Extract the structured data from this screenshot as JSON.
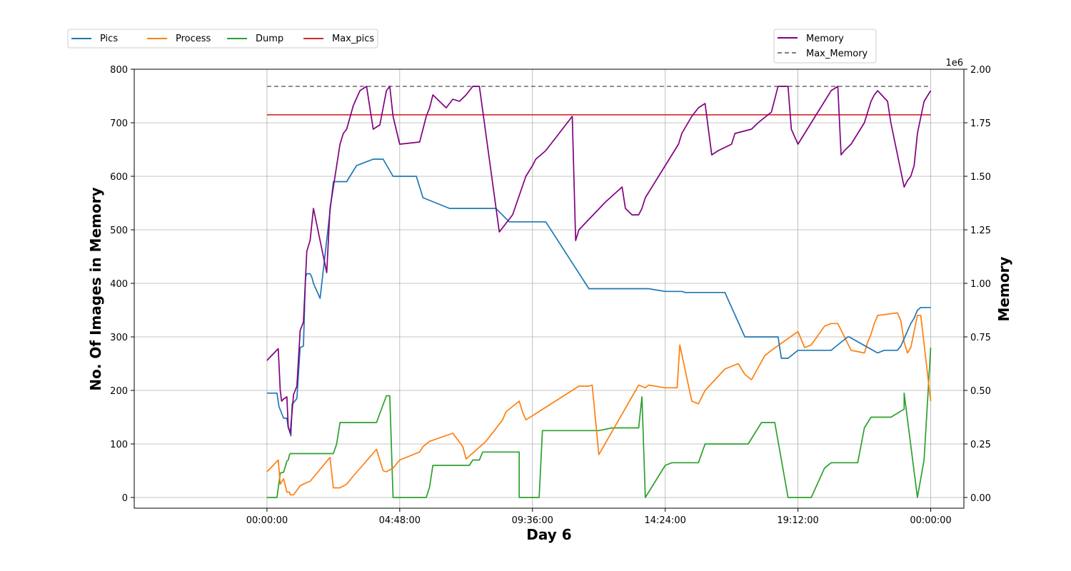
{
  "chart_data": {
    "type": "line",
    "title": "",
    "xlabel": "Day 6",
    "ylabel": "No. Of Images in Memory",
    "y2label": "Memory",
    "y2_offset_label": "1e6",
    "grid": true,
    "xlim": [
      -0.2,
      1.05
    ],
    "ylim": [
      -20,
      800
    ],
    "y2lim": [
      -0.05,
      2.0
    ],
    "x_ticks": [
      0,
      0.2,
      0.4,
      0.6,
      0.8,
      1.0
    ],
    "x_tick_labels": [
      "00:00:00",
      "04:48:00",
      "09:36:00",
      "14:24:00",
      "19:12:00",
      "00:00:00"
    ],
    "y_ticks": [
      0,
      100,
      200,
      300,
      400,
      500,
      600,
      700,
      800
    ],
    "y_tick_labels": [
      "0",
      "100",
      "200",
      "300",
      "400",
      "500",
      "600",
      "700",
      "800"
    ],
    "y2_ticks": [
      0,
      0.25,
      0.5,
      0.75,
      1.0,
      1.25,
      1.5,
      1.75,
      2.0
    ],
    "y2_tick_labels": [
      "0.00",
      "0.25",
      "0.50",
      "0.75",
      "1.00",
      "1.25",
      "1.50",
      "1.75",
      "2.00"
    ],
    "legend_left": {
      "placement": "top-left, above plot",
      "entries": [
        "Pics",
        "Process",
        "Dump",
        "Max_pics"
      ]
    },
    "legend_right": {
      "placement": "top-right, above plot",
      "entries": [
        "Memory",
        "Max_Memory"
      ]
    },
    "series": [
      {
        "name": "Pics",
        "axis": "left",
        "color": "#1f77b4",
        "style": "solid",
        "x": [
          0,
          0.015,
          0.018,
          0.025,
          0.03,
          0.032,
          0.034,
          0.036,
          0.038,
          0.04,
          0.045,
          0.05,
          0.055,
          0.058,
          0.06,
          0.065,
          0.068,
          0.07,
          0.08,
          0.1,
          0.12,
          0.135,
          0.16,
          0.175,
          0.19,
          0.2,
          0.215,
          0.22,
          0.225,
          0.235,
          0.275,
          0.285,
          0.295,
          0.32,
          0.345,
          0.365,
          0.39,
          0.415,
          0.42,
          0.485,
          0.5,
          0.511,
          0.515,
          0.555,
          0.575,
          0.6,
          0.61,
          0.625,
          0.63,
          0.65,
          0.66,
          0.69,
          0.72,
          0.725,
          0.76,
          0.77,
          0.775,
          0.785,
          0.8,
          0.83,
          0.84,
          0.85,
          0.855,
          0.875,
          0.877,
          0.92,
          0.93,
          0.95,
          0.955,
          0.97,
          0.975,
          0.98,
          0.985,
          0.99,
          0.995,
          1.0
        ],
        "y": [
          195,
          195,
          170,
          148,
          148,
          130,
          125,
          115,
          175,
          177,
          185,
          280,
          283,
          410,
          418,
          418,
          410,
          400,
          372,
          590,
          590,
          620,
          632,
          632,
          600,
          600,
          600,
          600,
          600,
          560,
          540,
          540,
          540,
          540,
          540,
          515,
          515,
          515,
          515,
          390,
          390,
          390,
          390,
          390,
          390,
          385,
          385,
          385,
          383,
          383,
          383,
          383,
          300,
          300,
          300,
          300,
          260,
          260,
          275,
          275,
          275,
          275,
          280,
          300,
          300,
          270,
          275,
          275,
          283,
          325,
          335,
          350,
          355,
          355,
          355,
          355
        ]
      },
      {
        "name": "Process",
        "axis": "left",
        "color": "#ff7f0e",
        "style": "solid",
        "x": [
          0,
          0.017,
          0.02,
          0.025,
          0.03,
          0.034,
          0.035,
          0.04,
          0.046,
          0.05,
          0.055,
          0.06,
          0.065,
          0.095,
          0.1,
          0.11,
          0.12,
          0.13,
          0.165,
          0.175,
          0.18,
          0.18,
          0.19,
          0.2,
          0.23,
          0.235,
          0.245,
          0.28,
          0.295,
          0.3,
          0.33,
          0.355,
          0.36,
          0.38,
          0.385,
          0.39,
          0.47,
          0.48,
          0.485,
          0.49,
          0.5,
          0.56,
          0.57,
          0.575,
          0.6,
          0.618,
          0.622,
          0.64,
          0.65,
          0.66,
          0.69,
          0.71,
          0.72,
          0.73,
          0.75,
          0.76,
          0.8,
          0.81,
          0.82,
          0.84,
          0.85,
          0.86,
          0.88,
          0.9,
          0.905,
          0.91,
          0.915,
          0.92,
          0.95,
          0.955,
          0.96,
          0.965,
          0.97,
          0.98,
          0.985,
          1.0
        ],
        "y": [
          48,
          70,
          25,
          35,
          10,
          10,
          5,
          5,
          15,
          22,
          25,
          28,
          30,
          75,
          18,
          18,
          25,
          40,
          90,
          50,
          48,
          48,
          55,
          70,
          85,
          95,
          105,
          120,
          95,
          72,
          105,
          145,
          160,
          180,
          160,
          145,
          208,
          208,
          208,
          210,
          80,
          210,
          205,
          210,
          205,
          205,
          285,
          180,
          175,
          200,
          240,
          250,
          230,
          220,
          265,
          275,
          310,
          280,
          285,
          320,
          325,
          325,
          275,
          270,
          290,
          305,
          325,
          340,
          345,
          330,
          290,
          270,
          280,
          340,
          340,
          180
        ]
      },
      {
        "name": "Dump",
        "axis": "left",
        "color": "#2ca02c",
        "style": "solid",
        "x": [
          0,
          0.015,
          0.02,
          0.022,
          0.025,
          0.03,
          0.032,
          0.034,
          0.035,
          0.1,
          0.105,
          0.11,
          0.11,
          0.165,
          0.18,
          0.185,
          0.19,
          0.19,
          0.23,
          0.235,
          0.24,
          0.245,
          0.25,
          0.305,
          0.31,
          0.32,
          0.325,
          0.345,
          0.35,
          0.38,
          0.38,
          0.385,
          0.39,
          0.41,
          0.415,
          0.49,
          0.495,
          0.5,
          0.52,
          0.525,
          0.55,
          0.56,
          0.565,
          0.57,
          0.59,
          0.6,
          0.61,
          0.62,
          0.65,
          0.66,
          0.7,
          0.71,
          0.725,
          0.745,
          0.76,
          0.765,
          0.785,
          0.8,
          0.81,
          0.82,
          0.84,
          0.85,
          0.86,
          0.87,
          0.875,
          0.88,
          0.89,
          0.9,
          0.91,
          0.92,
          0.94,
          0.96,
          0.96,
          0.98,
          0.99,
          1.0
        ],
        "y": [
          0,
          0,
          45,
          47,
          47,
          68,
          70,
          80,
          82,
          82,
          100,
          140,
          140,
          140,
          190,
          190,
          0,
          0,
          0,
          0,
          0,
          20,
          60,
          60,
          70,
          70,
          85,
          85,
          85,
          85,
          0,
          0,
          0,
          0,
          125,
          125,
          125,
          125,
          130,
          130,
          130,
          130,
          188,
          0,
          40,
          60,
          65,
          65,
          65,
          100,
          100,
          100,
          100,
          140,
          140,
          140,
          0,
          0,
          0,
          0,
          55,
          65,
          65,
          65,
          65,
          65,
          65,
          130,
          150,
          150,
          150,
          165,
          195,
          0,
          70,
          280
        ]
      },
      {
        "name": "Max_pics",
        "axis": "left",
        "color": "#d62728",
        "style": "solid",
        "x": [
          0,
          1.0
        ],
        "y": [
          715,
          715
        ]
      },
      {
        "name": "Memory",
        "axis": "right",
        "color": "#800080",
        "style": "solid",
        "x": [
          0,
          0.017,
          0.02,
          0.022,
          0.025,
          0.03,
          0.032,
          0.035,
          0.04,
          0.045,
          0.05,
          0.055,
          0.06,
          0.065,
          0.07,
          0.09,
          0.095,
          0.1,
          0.11,
          0.115,
          0.12,
          0.13,
          0.14,
          0.15,
          0.16,
          0.165,
          0.17,
          0.18,
          0.185,
          0.19,
          0.2,
          0.23,
          0.235,
          0.24,
          0.245,
          0.25,
          0.27,
          0.28,
          0.29,
          0.3,
          0.31,
          0.32,
          0.35,
          0.36,
          0.37,
          0.39,
          0.4,
          0.405,
          0.42,
          0.46,
          0.465,
          0.47,
          0.51,
          0.535,
          0.54,
          0.55,
          0.56,
          0.565,
          0.57,
          0.59,
          0.6,
          0.61,
          0.62,
          0.625,
          0.64,
          0.65,
          0.66,
          0.67,
          0.68,
          0.7,
          0.705,
          0.73,
          0.74,
          0.76,
          0.77,
          0.785,
          0.79,
          0.8,
          0.81,
          0.82,
          0.83,
          0.84,
          0.85,
          0.86,
          0.865,
          0.87,
          0.88,
          0.89,
          0.9,
          0.91,
          0.915,
          0.92,
          0.935,
          0.94,
          0.96,
          0.965,
          0.97,
          0.975,
          0.98,
          0.99,
          1.0
        ],
        "y": [
          0.64,
          0.695,
          0.5,
          0.45,
          0.46,
          0.47,
          0.33,
          0.3,
          0.48,
          0.52,
          0.78,
          0.82,
          1.15,
          1.2,
          1.35,
          1.05,
          1.35,
          1.45,
          1.65,
          1.7,
          1.72,
          1.83,
          1.9,
          1.92,
          1.72,
          1.73,
          1.74,
          1.9,
          1.92,
          1.78,
          1.65,
          1.66,
          1.72,
          1.78,
          1.82,
          1.88,
          1.82,
          1.86,
          1.85,
          1.88,
          1.92,
          1.92,
          1.24,
          1.28,
          1.32,
          1.5,
          1.55,
          1.58,
          1.62,
          1.78,
          1.2,
          1.25,
          1.38,
          1.45,
          1.35,
          1.32,
          1.32,
          1.35,
          1.4,
          1.5,
          1.55,
          1.6,
          1.65,
          1.7,
          1.78,
          1.82,
          1.84,
          1.6,
          1.62,
          1.65,
          1.7,
          1.72,
          1.75,
          1.8,
          1.92,
          1.92,
          1.72,
          1.65,
          1.7,
          1.75,
          1.8,
          1.85,
          1.9,
          1.92,
          1.6,
          1.62,
          1.65,
          1.7,
          1.75,
          1.85,
          1.88,
          1.9,
          1.85,
          1.75,
          1.45,
          1.48,
          1.5,
          1.55,
          1.7,
          1.85,
          1.9
        ]
      },
      {
        "name": "Max_Memory",
        "axis": "right",
        "color": "#808080",
        "style": "dashed",
        "x": [
          0,
          1.0
        ],
        "y": [
          1.92,
          1.92
        ]
      }
    ]
  }
}
